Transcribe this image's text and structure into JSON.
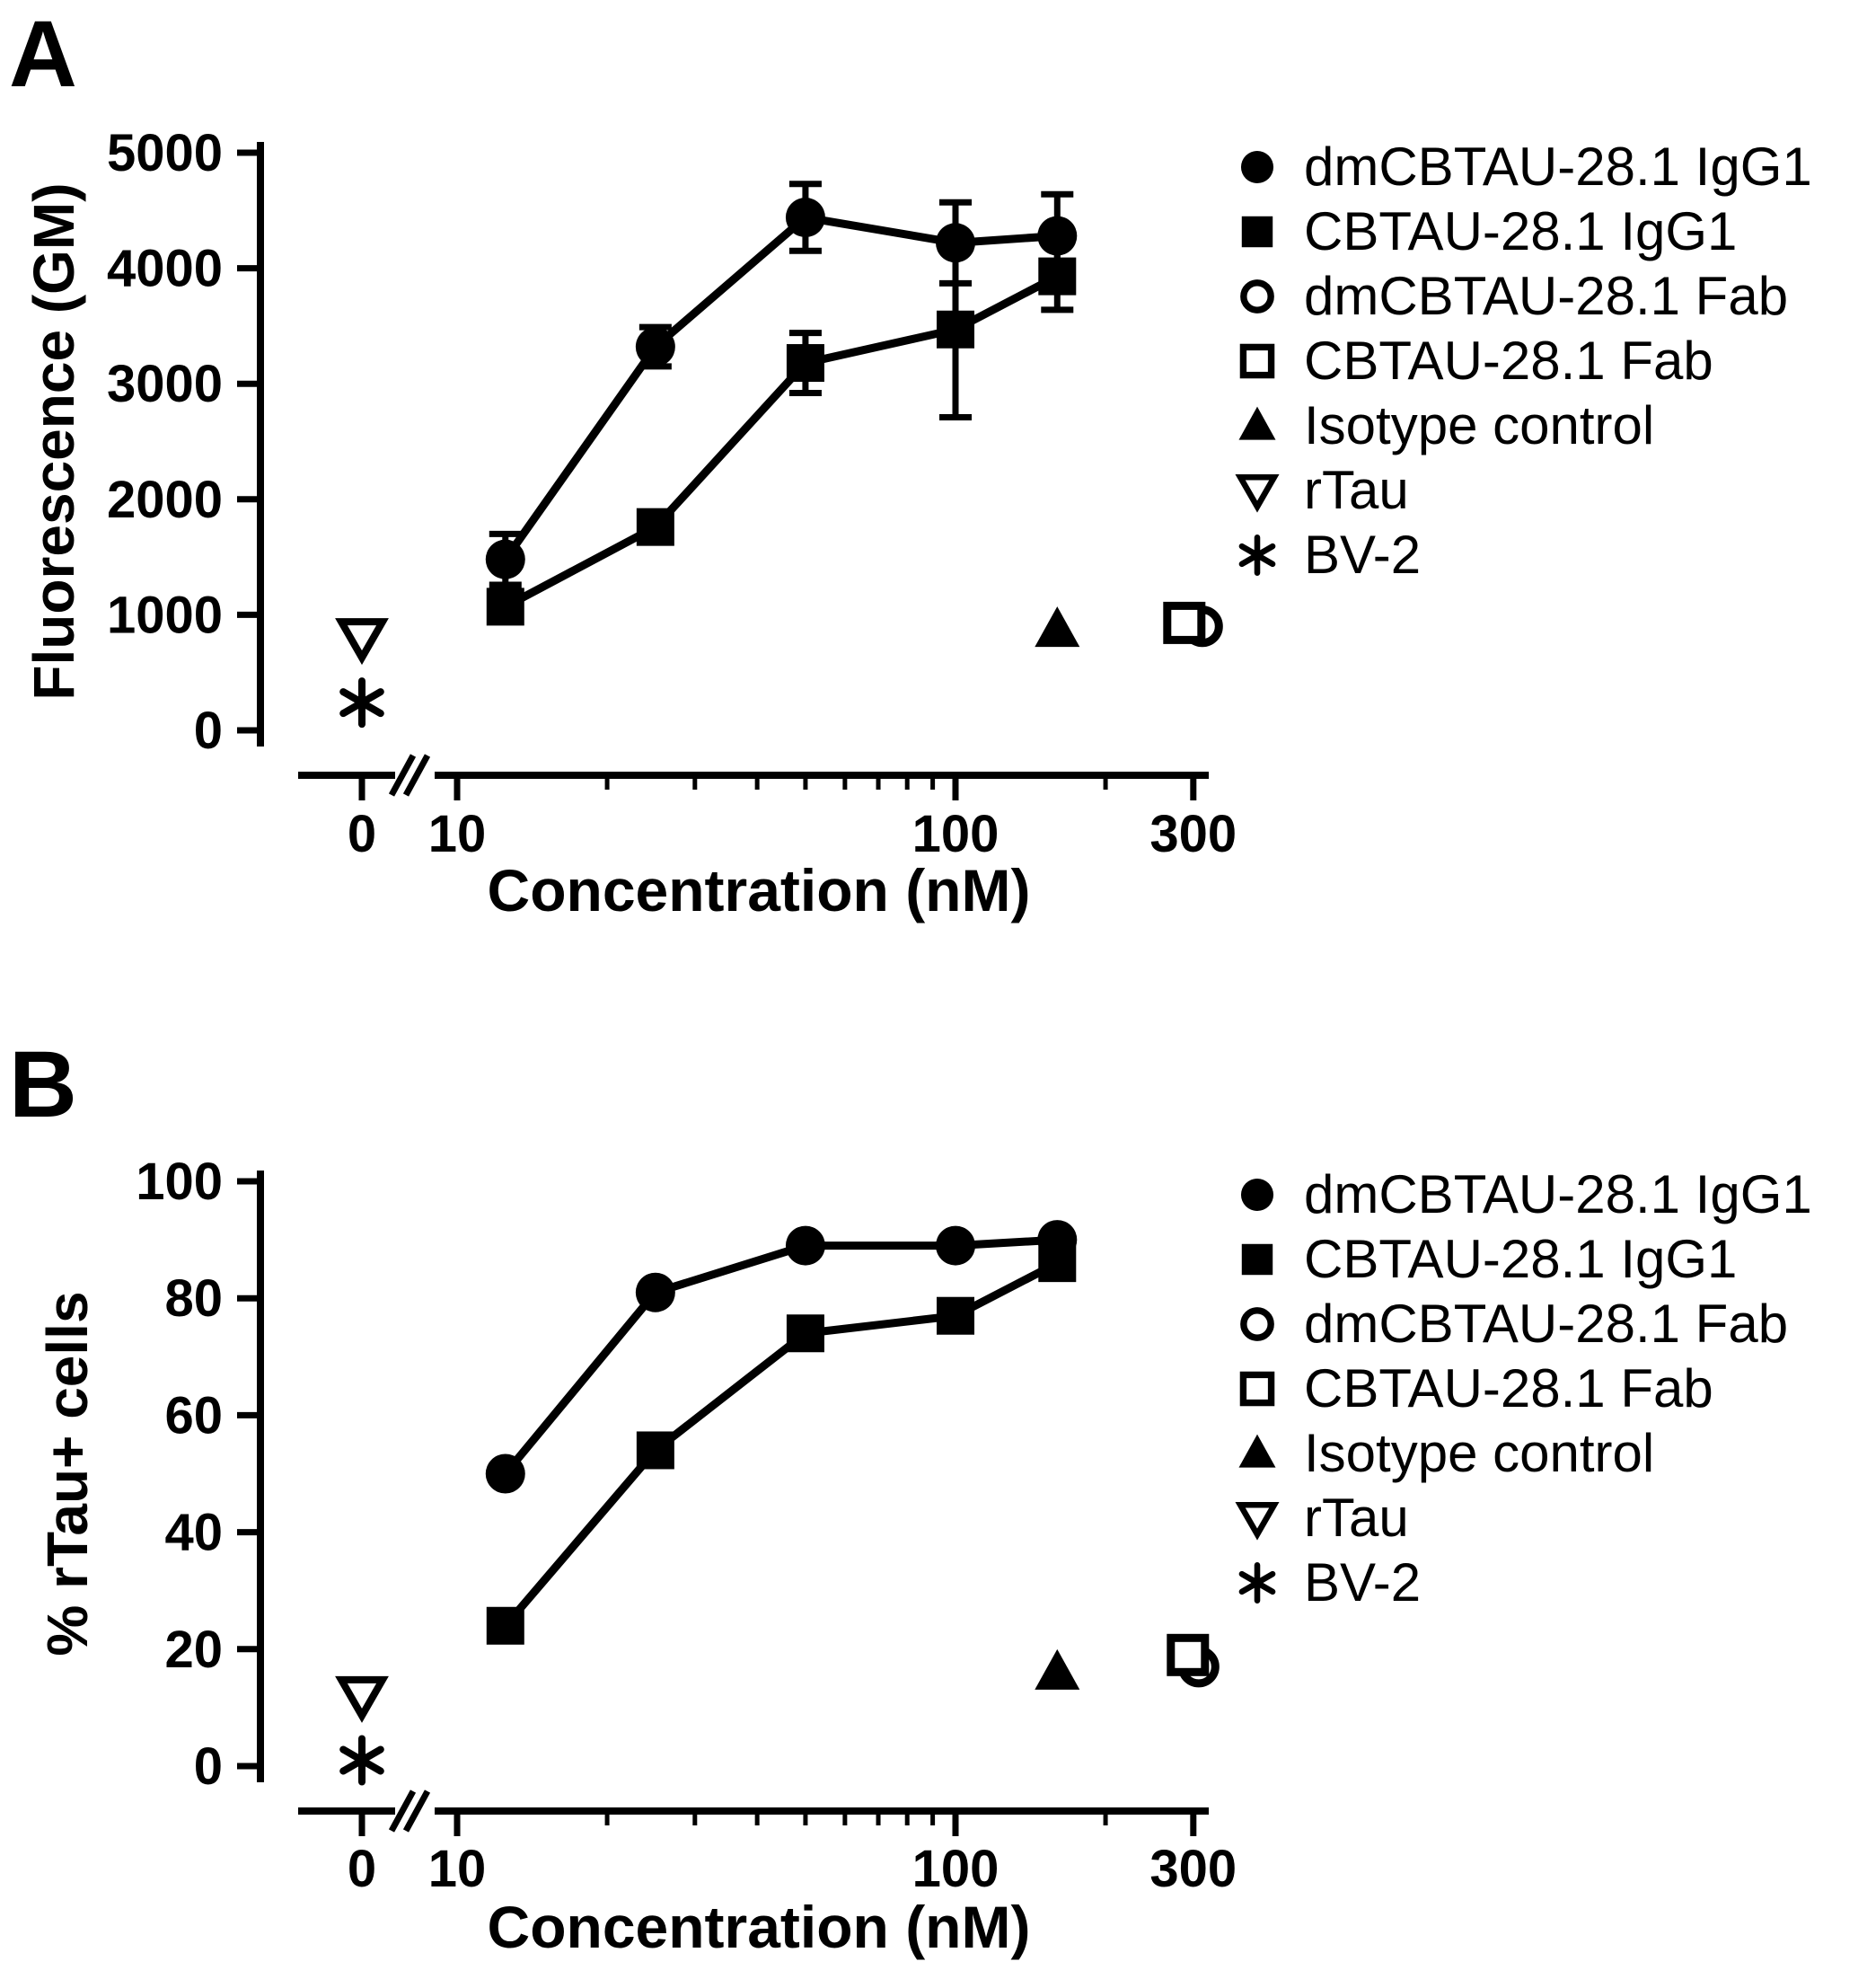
{
  "colors": {
    "foreground": "#000000",
    "background": "#ffffff"
  },
  "chart_data": [
    {
      "type": "scatter",
      "panel_label": "A",
      "xlabel": "Concentration (nM)",
      "ylabel": "Fluorescence (GM)",
      "xscale": "log",
      "axis_break_after_zero": true,
      "xlim": [
        10,
        300
      ],
      "ylim": [
        0,
        5000
      ],
      "yticks": [
        0,
        1000,
        2000,
        3000,
        4000,
        5000
      ],
      "xticks_major": [
        0,
        10,
        100,
        300
      ],
      "xticks_minor": [
        20,
        30,
        40,
        50,
        60,
        70,
        80,
        90,
        200
      ],
      "legend_position": "right",
      "series": [
        {
          "name": "dmCBTAU-28.1 IgG1",
          "marker": "filled-circle",
          "line": true,
          "x": [
            12.5,
            25,
            50,
            100,
            160
          ],
          "y": [
            1480,
            3320,
            4440,
            4220,
            4280
          ],
          "yerr": [
            220,
            170,
            290,
            350,
            360
          ]
        },
        {
          "name": "CBTAU-28.1 IgG1",
          "marker": "filled-square",
          "line": true,
          "x": [
            12.5,
            25,
            50,
            100,
            160
          ],
          "y": [
            1070,
            1760,
            3180,
            3470,
            3930
          ],
          "yerr": [
            0,
            0,
            260,
            760,
            290
          ]
        },
        {
          "name": "dmCBTAU-28.1 Fab",
          "marker": "open-circle",
          "line": false,
          "x": [
            300
          ],
          "y": [
            900
          ],
          "dx": 10
        },
        {
          "name": "CBTAU-28.1 Fab",
          "marker": "open-square",
          "line": false,
          "x": [
            300
          ],
          "y": [
            930
          ],
          "dx": -10
        },
        {
          "name": "Isotype control",
          "marker": "filled-triangle",
          "line": false,
          "x": [
            160
          ],
          "y": [
            870
          ]
        },
        {
          "name": "rTau",
          "marker": "open-inverted-triangle",
          "line": false,
          "x": [
            0
          ],
          "y": [
            800
          ]
        },
        {
          "name": "BV-2",
          "marker": "asterisk",
          "line": false,
          "x": [
            0
          ],
          "y": [
            240
          ]
        }
      ]
    },
    {
      "type": "scatter",
      "panel_label": "B",
      "xlabel": "Concentration (nM)",
      "ylabel": "% rTau+ cells",
      "xscale": "log",
      "axis_break_after_zero": true,
      "xlim": [
        10,
        300
      ],
      "ylim": [
        0,
        100
      ],
      "yticks": [
        0,
        20,
        40,
        60,
        80,
        100
      ],
      "xticks_major": [
        0,
        10,
        100,
        300
      ],
      "xticks_minor": [
        20,
        30,
        40,
        50,
        60,
        70,
        80,
        90,
        200
      ],
      "legend_position": "right",
      "series": [
        {
          "name": "dmCBTAU-28.1 IgG1",
          "marker": "filled-circle",
          "line": true,
          "x": [
            12.5,
            25,
            50,
            100,
            160
          ],
          "y": [
            50,
            81,
            89,
            89,
            90
          ]
        },
        {
          "name": "CBTAU-28.1 IgG1",
          "marker": "filled-square",
          "line": true,
          "x": [
            12.5,
            25,
            50,
            100,
            160
          ],
          "y": [
            24,
            54,
            74,
            77,
            86
          ]
        },
        {
          "name": "dmCBTAU-28.1 Fab",
          "marker": "open-circle",
          "line": false,
          "x": [
            300
          ],
          "y": [
            17
          ],
          "dx": 6
        },
        {
          "name": "CBTAU-28.1 Fab",
          "marker": "open-square",
          "line": false,
          "x": [
            300
          ],
          "y": [
            19
          ],
          "dx": -6
        },
        {
          "name": "Isotype control",
          "marker": "filled-triangle",
          "line": false,
          "x": [
            160
          ],
          "y": [
            16
          ]
        },
        {
          "name": "rTau",
          "marker": "open-inverted-triangle",
          "line": false,
          "x": [
            0
          ],
          "y": [
            12
          ]
        },
        {
          "name": "BV-2",
          "marker": "asterisk",
          "line": false,
          "x": [
            0
          ],
          "y": [
            1
          ]
        }
      ]
    }
  ]
}
